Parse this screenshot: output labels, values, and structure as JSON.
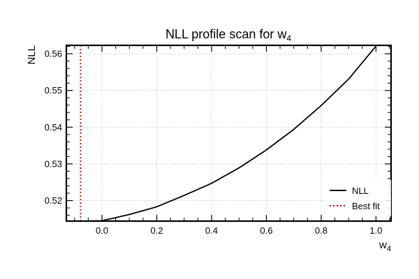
{
  "chart_data": {
    "type": "line",
    "title": "NLL profile scan for w",
    "title_subscript": "4",
    "xlabel": "w",
    "xlabel_subscript": "4",
    "ylabel": "NLL",
    "xlim": [
      -0.13,
      1.055
    ],
    "ylim": [
      0.5144,
      0.5623
    ],
    "xticks": [
      0.0,
      0.2,
      0.4,
      0.6,
      0.8,
      1.0
    ],
    "xtick_labels": [
      "0.0",
      "0.2",
      "0.4",
      "0.6",
      "0.8",
      "1.0"
    ],
    "yticks": [
      0.52,
      0.53,
      0.54,
      0.55,
      0.56
    ],
    "ytick_labels": [
      "0.52",
      "0.53",
      "0.54",
      "0.55",
      "0.56"
    ],
    "grid": true,
    "legend_position": "lower-right",
    "series": [
      {
        "name": "NLL",
        "color": "#000000",
        "style": "solid",
        "x": [
          -0.07,
          0.0,
          0.1,
          0.2,
          0.3,
          0.4,
          0.5,
          0.6,
          0.7,
          0.8,
          0.9,
          1.0
        ],
        "y": [
          0.5144,
          0.5145,
          0.5162,
          0.5183,
          0.5214,
          0.5247,
          0.5289,
          0.5338,
          0.5394,
          0.5459,
          0.5531,
          0.5621
        ]
      },
      {
        "name": "Best fit",
        "color": "#dd0000",
        "style": "dotted",
        "vline_x": -0.078
      }
    ]
  }
}
